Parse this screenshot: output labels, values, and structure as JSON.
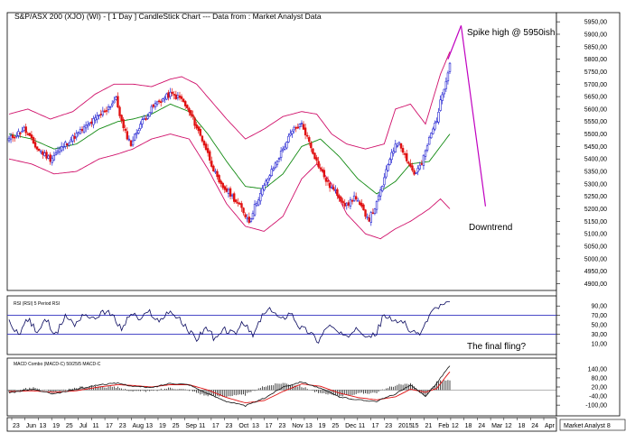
{
  "header": {
    "title": "S&P/ASX 200 (XJO) (WI) -  [ 1 Day ] CandleStick Chart --- Data from : Market Analyst Data"
  },
  "colors": {
    "up": "#1f1fd0",
    "down": "#e01010",
    "bollinger": "#d0106a",
    "sma": "#128a12",
    "projection": "#c000c0",
    "rsi": "#0a0a60",
    "guide": "#3030c0",
    "macd": "#111111",
    "signal": "#e01010"
  },
  "chart_data": [
    {
      "panel": "price",
      "type": "candlestick",
      "title": "S&P/ASX 200 (XJO) (WI) -  [ 1 Day ] CandleStick Chart --- Data from : Market Analyst Data",
      "y_ticks": [
        "5950,00",
        "5900,00",
        "5850,00",
        "5800,00",
        "5750,00",
        "5700,00",
        "5650,00",
        "5600,00",
        "5550,00",
        "5500,00",
        "5450,00",
        "5400,00",
        "5350,00",
        "5300,00",
        "5250,00",
        "5200,00",
        "5150,00",
        "5100,00",
        "5050,00",
        "5000,00",
        "4950,00",
        "4900,00"
      ],
      "ylim": [
        4880,
        5965
      ],
      "close_waypoints": [
        [
          0,
          5480
        ],
        [
          8,
          5520
        ],
        [
          15,
          5440
        ],
        [
          22,
          5400
        ],
        [
          30,
          5460
        ],
        [
          38,
          5510
        ],
        [
          46,
          5560
        ],
        [
          52,
          5600
        ],
        [
          57,
          5640
        ],
        [
          61,
          5520
        ],
        [
          65,
          5460
        ],
        [
          70,
          5540
        ],
        [
          78,
          5620
        ],
        [
          86,
          5660
        ],
        [
          92,
          5640
        ],
        [
          98,
          5560
        ],
        [
          104,
          5460
        ],
        [
          108,
          5380
        ],
        [
          112,
          5300
        ],
        [
          118,
          5260
        ],
        [
          124,
          5200
        ],
        [
          128,
          5150
        ],
        [
          132,
          5230
        ],
        [
          136,
          5290
        ],
        [
          142,
          5380
        ],
        [
          148,
          5470
        ],
        [
          152,
          5520
        ],
        [
          156,
          5540
        ],
        [
          160,
          5470
        ],
        [
          164,
          5390
        ],
        [
          170,
          5300
        ],
        [
          175,
          5260
        ],
        [
          180,
          5210
        ],
        [
          184,
          5250
        ],
        [
          188,
          5200
        ],
        [
          192,
          5160
        ],
        [
          196,
          5220
        ],
        [
          200,
          5320
        ],
        [
          204,
          5430
        ],
        [
          208,
          5470
        ],
        [
          212,
          5400
        ],
        [
          216,
          5340
        ],
        [
          220,
          5380
        ],
        [
          224,
          5480
        ],
        [
          228,
          5560
        ],
        [
          231,
          5660
        ],
        [
          233,
          5720
        ],
        [
          235,
          5790
        ]
      ],
      "sma_waypoints": [
        [
          0,
          5500
        ],
        [
          12,
          5480
        ],
        [
          24,
          5440
        ],
        [
          36,
          5460
        ],
        [
          48,
          5520
        ],
        [
          58,
          5550
        ],
        [
          66,
          5560
        ],
        [
          76,
          5580
        ],
        [
          86,
          5620
        ],
        [
          96,
          5590
        ],
        [
          106,
          5500
        ],
        [
          116,
          5390
        ],
        [
          126,
          5290
        ],
        [
          136,
          5280
        ],
        [
          146,
          5340
        ],
        [
          156,
          5450
        ],
        [
          166,
          5480
        ],
        [
          176,
          5410
        ],
        [
          186,
          5320
        ],
        [
          196,
          5260
        ],
        [
          206,
          5310
        ],
        [
          214,
          5380
        ],
        [
          224,
          5390
        ],
        [
          235,
          5500
        ]
      ],
      "bb_upper_waypoints": [
        [
          0,
          5580
        ],
        [
          10,
          5600
        ],
        [
          22,
          5560
        ],
        [
          34,
          5590
        ],
        [
          46,
          5660
        ],
        [
          56,
          5700
        ],
        [
          66,
          5700
        ],
        [
          76,
          5690
        ],
        [
          86,
          5720
        ],
        [
          92,
          5730
        ],
        [
          100,
          5700
        ],
        [
          108,
          5630
        ],
        [
          116,
          5560
        ],
        [
          126,
          5480
        ],
        [
          136,
          5520
        ],
        [
          146,
          5570
        ],
        [
          156,
          5590
        ],
        [
          164,
          5580
        ],
        [
          172,
          5500
        ],
        [
          180,
          5460
        ],
        [
          190,
          5440
        ],
        [
          200,
          5460
        ],
        [
          206,
          5600
        ],
        [
          214,
          5620
        ],
        [
          222,
          5540
        ],
        [
          230,
          5740
        ],
        [
          235,
          5830
        ]
      ],
      "bb_lower_waypoints": [
        [
          0,
          5400
        ],
        [
          12,
          5380
        ],
        [
          24,
          5340
        ],
        [
          36,
          5350
        ],
        [
          48,
          5400
        ],
        [
          58,
          5420
        ],
        [
          66,
          5440
        ],
        [
          76,
          5480
        ],
        [
          86,
          5500
        ],
        [
          96,
          5480
        ],
        [
          106,
          5360
        ],
        [
          116,
          5220
        ],
        [
          126,
          5130
        ],
        [
          136,
          5110
        ],
        [
          146,
          5170
        ],
        [
          156,
          5320
        ],
        [
          164,
          5380
        ],
        [
          172,
          5300
        ],
        [
          180,
          5180
        ],
        [
          190,
          5100
        ],
        [
          198,
          5080
        ],
        [
          206,
          5120
        ],
        [
          214,
          5150
        ],
        [
          224,
          5200
        ],
        [
          230,
          5240
        ],
        [
          235,
          5200
        ]
      ],
      "projection": [
        [
          234,
          5800
        ],
        [
          241,
          5935
        ],
        [
          254,
          5210
        ]
      ],
      "annotations": [
        "Spike high @ 5950ish",
        "Downtrend"
      ]
    },
    {
      "panel": "rsi",
      "type": "line",
      "title": "RSI (RSI) 5 Period RSI",
      "y_ticks": [
        "90,00",
        "70,00",
        "50,00",
        "30,00",
        "10,00"
      ],
      "ylim": [
        0,
        100
      ],
      "guides": [
        70,
        30
      ],
      "waypoints": [
        [
          0,
          55
        ],
        [
          5,
          30
        ],
        [
          10,
          62
        ],
        [
          15,
          35
        ],
        [
          20,
          60
        ],
        [
          25,
          28
        ],
        [
          30,
          70
        ],
        [
          35,
          50
        ],
        [
          40,
          75
        ],
        [
          45,
          60
        ],
        [
          50,
          80
        ],
        [
          55,
          70
        ],
        [
          60,
          40
        ],
        [
          65,
          75
        ],
        [
          70,
          60
        ],
        [
          75,
          78
        ],
        [
          80,
          55
        ],
        [
          85,
          80
        ],
        [
          90,
          65
        ],
        [
          95,
          40
        ],
        [
          100,
          20
        ],
        [
          105,
          45
        ],
        [
          110,
          18
        ],
        [
          115,
          40
        ],
        [
          120,
          30
        ],
        [
          125,
          55
        ],
        [
          130,
          25
        ],
        [
          135,
          70
        ],
        [
          140,
          82
        ],
        [
          145,
          60
        ],
        [
          150,
          78
        ],
        [
          155,
          45
        ],
        [
          160,
          35
        ],
        [
          165,
          15
        ],
        [
          170,
          50
        ],
        [
          175,
          35
        ],
        [
          180,
          20
        ],
        [
          185,
          48
        ],
        [
          190,
          30
        ],
        [
          195,
          25
        ],
        [
          200,
          72
        ],
        [
          205,
          55
        ],
        [
          210,
          60
        ],
        [
          215,
          30
        ],
        [
          220,
          35
        ],
        [
          225,
          78
        ],
        [
          230,
          90
        ],
        [
          235,
          96
        ]
      ],
      "annotation": "The final fling?"
    },
    {
      "panel": "macd",
      "type": "line",
      "title": "MACD Combo (MACD-C) 50/25/5 MACD-C",
      "y_ticks": [
        "140,00",
        "80,00",
        "20,00",
        "-40,00",
        "-100,00"
      ],
      "ylim": [
        -135,
        175
      ],
      "macd_waypoints": [
        [
          0,
          -20
        ],
        [
          12,
          5
        ],
        [
          24,
          -25
        ],
        [
          36,
          5
        ],
        [
          48,
          35
        ],
        [
          58,
          45
        ],
        [
          66,
          25
        ],
        [
          76,
          15
        ],
        [
          86,
          45
        ],
        [
          96,
          35
        ],
        [
          106,
          -25
        ],
        [
          116,
          -75
        ],
        [
          126,
          -105
        ],
        [
          136,
          -55
        ],
        [
          146,
          20
        ],
        [
          156,
          55
        ],
        [
          166,
          10
        ],
        [
          176,
          -45
        ],
        [
          186,
          -65
        ],
        [
          196,
          -75
        ],
        [
          206,
          -25
        ],
        [
          214,
          30
        ],
        [
          222,
          -40
        ],
        [
          228,
          45
        ],
        [
          233,
          130
        ],
        [
          235,
          160
        ]
      ],
      "signal_waypoints": [
        [
          0,
          -10
        ],
        [
          12,
          -5
        ],
        [
          24,
          -15
        ],
        [
          36,
          -5
        ],
        [
          48,
          20
        ],
        [
          58,
          35
        ],
        [
          66,
          30
        ],
        [
          76,
          20
        ],
        [
          86,
          35
        ],
        [
          96,
          35
        ],
        [
          106,
          0
        ],
        [
          116,
          -50
        ],
        [
          126,
          -85
        ],
        [
          136,
          -70
        ],
        [
          146,
          -10
        ],
        [
          156,
          40
        ],
        [
          166,
          25
        ],
        [
          176,
          -20
        ],
        [
          186,
          -50
        ],
        [
          196,
          -65
        ],
        [
          206,
          -45
        ],
        [
          214,
          5
        ],
        [
          222,
          -15
        ],
        [
          228,
          10
        ],
        [
          233,
          90
        ],
        [
          235,
          120
        ]
      ],
      "x_labels": [
        "23",
        "Jun",
        "13",
        "19",
        "25",
        "Jul",
        "11",
        "17",
        "23",
        "Aug",
        "13",
        "19",
        "25",
        "Sep",
        "11",
        "17",
        "23",
        "Oct",
        "13",
        "17",
        "23",
        "Nov",
        "13",
        "19",
        "25",
        "Dec",
        "11",
        "17",
        "23",
        "2015",
        "15",
        "21",
        "Feb",
        "12",
        "18",
        "24",
        "Mar",
        "12",
        "18",
        "24",
        "Apr",
        "Market Analyst 8"
      ]
    }
  ]
}
